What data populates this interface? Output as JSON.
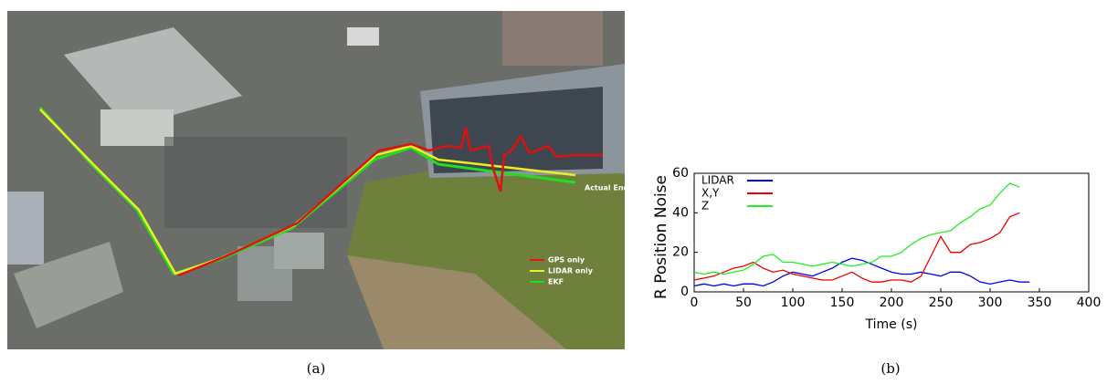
{
  "figure_a": {
    "caption": "(a)",
    "annotation": "Actual End",
    "legend": [
      "GPS only",
      "LIDAR only",
      "EKF"
    ]
  },
  "chart_data": {
    "type": "line",
    "caption": "(b)",
    "x_label": "Time (s)",
    "y_label": "R Position Noise",
    "x": [
      0,
      10,
      20,
      30,
      40,
      50,
      60,
      70,
      80,
      90,
      100,
      110,
      120,
      130,
      140,
      150,
      160,
      170,
      180,
      190,
      200,
      210,
      220,
      230,
      240,
      250,
      260,
      270,
      280,
      290,
      300,
      310,
      320,
      330,
      340
    ],
    "series": [
      {
        "name": "LIDAR",
        "color": "#0000ee",
        "values": [
          3,
          4,
          3,
          4,
          3,
          4,
          4,
          3,
          5,
          8,
          10,
          9,
          8,
          10,
          12,
          15,
          17,
          16,
          14,
          12,
          10,
          9,
          9,
          10,
          9,
          8,
          10,
          10,
          8,
          5,
          4,
          5,
          6,
          5,
          5
        ]
      },
      {
        "name": "X,Y",
        "color": "#ee0000",
        "values": [
          6,
          7,
          8,
          10,
          12,
          13,
          15,
          12,
          10,
          11,
          9,
          8,
          7,
          6,
          6,
          8,
          10,
          7,
          5,
          5,
          6,
          6,
          5,
          8,
          18,
          28,
          20,
          20,
          24,
          25,
          27,
          30,
          38,
          40,
          null
        ]
      },
      {
        "name": "Z",
        "color": "#22ee22",
        "values": [
          10,
          9,
          10,
          9,
          10,
          11,
          14,
          18,
          19,
          15,
          15,
          14,
          13,
          14,
          15,
          14,
          13,
          14,
          15,
          18,
          18,
          20,
          24,
          27,
          29,
          30,
          31,
          35,
          38,
          42,
          44,
          50,
          55,
          53,
          null
        ]
      }
    ],
    "xlim": [
      0,
      400
    ],
    "xticks": [
      0,
      50,
      100,
      150,
      200,
      250,
      300,
      350,
      400
    ],
    "ylim": [
      0,
      60
    ],
    "yticks": [
      0,
      20,
      40,
      60
    ],
    "grid": false,
    "legend": "upper left"
  }
}
